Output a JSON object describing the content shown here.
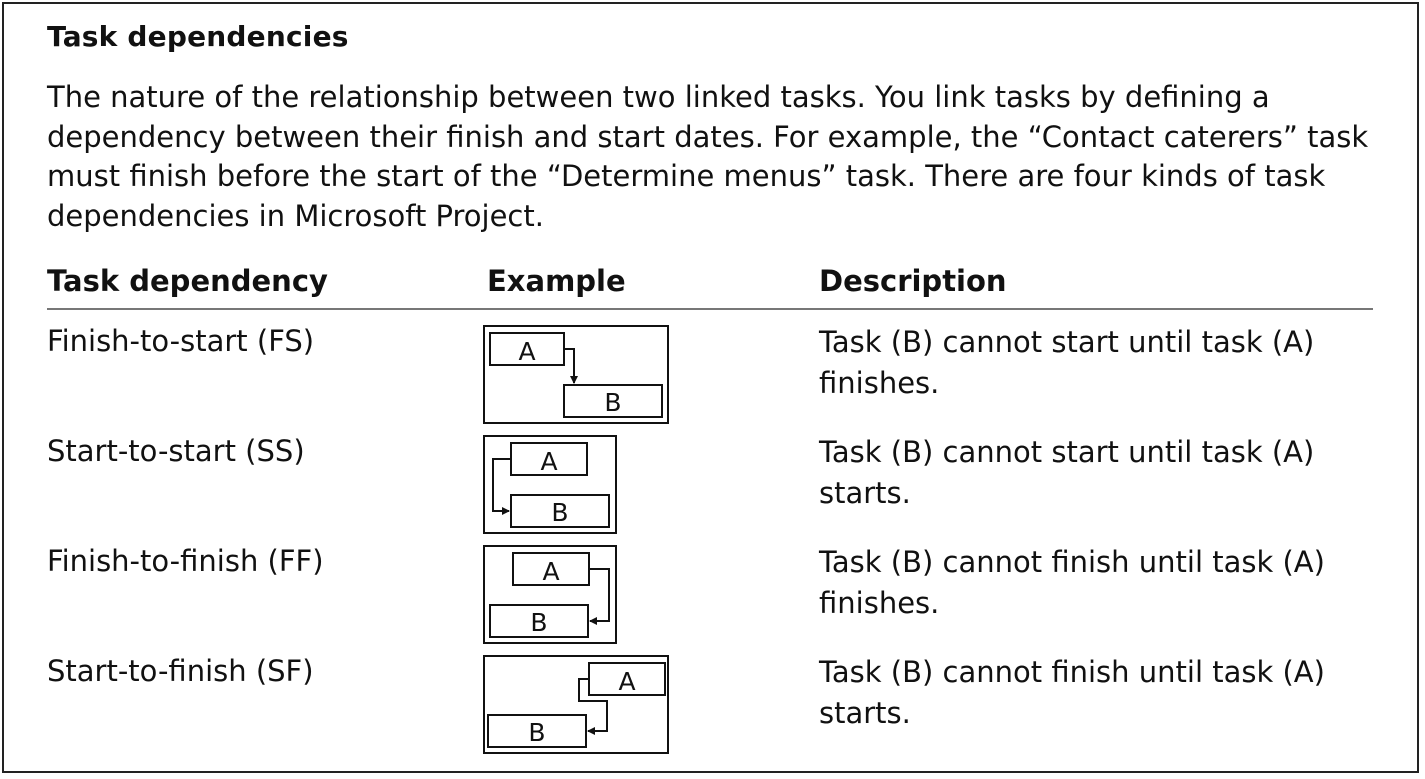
{
  "title": "Task dependencies",
  "intro": "The nature of the relationship between two linked tasks. You link tasks by defining a dependency between their finish and start dates. For example, the “Contact caterers” task must finish before the start of the “Determine menus” task. There are four kinds of task dependencies in Microsoft Project.",
  "table": {
    "headers": {
      "dependency": "Task dependency",
      "example": "Example",
      "description": "Description"
    },
    "rows": [
      {
        "dependency": "Finish-to-start (FS)",
        "label_a": "A",
        "label_b": "B",
        "description": "Task (B) cannot start until task (A) finishes."
      },
      {
        "dependency": "Start-to-start (SS)",
        "label_a": "A",
        "label_b": "B",
        "description": "Task (B) cannot start until task (A) starts."
      },
      {
        "dependency": "Finish-to-finish (FF)",
        "label_a": "A",
        "label_b": "B",
        "description": "Task (B) cannot finish until task (A) finishes."
      },
      {
        "dependency": "Start-to-finish (SF)",
        "label_a": "A",
        "label_b": "B",
        "description": "Task (B) cannot finish until task (A) starts."
      }
    ]
  }
}
